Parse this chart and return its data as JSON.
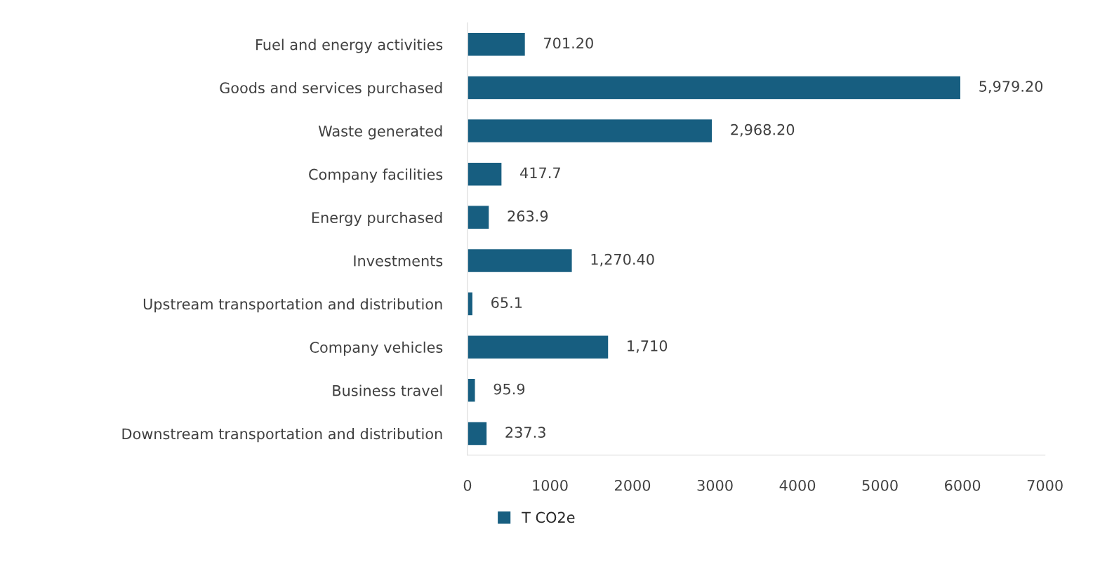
{
  "chart_data": {
    "type": "bar",
    "orientation": "horizontal",
    "categories": [
      "Fuel and energy activities",
      "Goods and services purchased",
      "Waste generated",
      "Company facilities",
      "Energy purchased",
      "Investments",
      "Upstream transportation and distribution",
      "Company vehicles",
      "Business travel",
      "Downstream transportation and distribution"
    ],
    "series": [
      {
        "name": "T CO2e",
        "color": "#175e80",
        "values": [
          701.2,
          5979.2,
          2968.2,
          417.7,
          263.9,
          1270.4,
          65.1,
          1710,
          95.9,
          237.3
        ],
        "value_labels": [
          "701.20",
          "5,979.20",
          "2,968.20",
          "417.7",
          "263.9",
          "1,270.40",
          "65.1",
          "1,710",
          "95.9",
          "237.3"
        ]
      }
    ],
    "xlim": [
      0,
      7000
    ],
    "xticks": [
      0,
      1000,
      2000,
      3000,
      4000,
      5000,
      6000,
      7000
    ],
    "grid": false,
    "legend": "bottom"
  }
}
